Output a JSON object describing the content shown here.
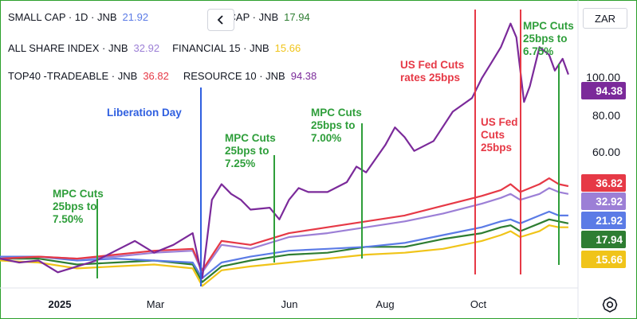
{
  "currency": "ZAR",
  "collapse_icon": "chevron-left-icon",
  "settings_icon": "settings-gear-icon",
  "legend": [
    [
      {
        "label": "SMALL CAP · 1D · JNB",
        "value": "21.92",
        "color": "#5b7be6"
      },
      {
        "label": "MID CAP · JNB",
        "value": "17.94",
        "color": "#2e7d32"
      }
    ],
    [
      {
        "label": "ALL SHARE INDEX · JNB",
        "value": "32.92",
        "color": "#9c7fd6"
      },
      {
        "label": "FINANCIAL 15 · JNB",
        "value": "15.66",
        "color": "#f0c419"
      }
    ],
    [
      {
        "label": "TOP40 -TRADEABLE · JNB",
        "value": "36.82",
        "color": "#e63946"
      },
      {
        "label": "RESOURCE 10 · JNB",
        "value": "94.38",
        "color": "#7b2a9a"
      }
    ]
  ],
  "chart_data": {
    "type": "line",
    "x_ticks": [
      "2025",
      "Mar",
      "Jun",
      "Aug",
      "Oct"
    ],
    "y_ticks": [
      "100.00",
      "80.00",
      "60.00"
    ],
    "ylim": [
      -15,
      130
    ],
    "xlim": [
      0,
      300
    ],
    "series": [
      {
        "name": "RESOURCE 10",
        "color": "#7b2a9a",
        "last": "94.38",
        "points": [
          [
            0,
            0
          ],
          [
            10,
            -2
          ],
          [
            20,
            -1
          ],
          [
            30,
            -7
          ],
          [
            40,
            -4
          ],
          [
            50,
            -1
          ],
          [
            60,
            4
          ],
          [
            70,
            9
          ],
          [
            80,
            3
          ],
          [
            90,
            7
          ],
          [
            100,
            13
          ],
          [
            105,
            -10
          ],
          [
            110,
            30
          ],
          [
            115,
            38
          ],
          [
            120,
            33
          ],
          [
            125,
            30
          ],
          [
            130,
            25
          ],
          [
            140,
            26
          ],
          [
            145,
            20
          ],
          [
            150,
            30
          ],
          [
            155,
            36
          ],
          [
            160,
            34
          ],
          [
            170,
            34
          ],
          [
            180,
            39
          ],
          [
            185,
            47
          ],
          [
            190,
            44
          ],
          [
            200,
            58
          ],
          [
            205,
            67
          ],
          [
            210,
            62
          ],
          [
            215,
            55
          ],
          [
            225,
            60
          ],
          [
            235,
            75
          ],
          [
            245,
            82
          ],
          [
            250,
            92
          ],
          [
            255,
            100
          ],
          [
            260,
            108
          ],
          [
            265,
            120
          ],
          [
            268,
            113
          ],
          [
            272,
            80
          ],
          [
            275,
            88
          ],
          [
            280,
            108
          ],
          [
            285,
            104
          ],
          [
            288,
            96
          ],
          [
            292,
            102
          ],
          [
            295,
            94
          ]
        ]
      },
      {
        "name": "TOP40 -TRADEABLE",
        "color": "#e63946",
        "last": "36.82",
        "points": [
          [
            0,
            0
          ],
          [
            20,
            1
          ],
          [
            40,
            0
          ],
          [
            60,
            2
          ],
          [
            80,
            4
          ],
          [
            100,
            5
          ],
          [
            105,
            -6
          ],
          [
            115,
            9
          ],
          [
            130,
            7
          ],
          [
            150,
            13
          ],
          [
            170,
            16
          ],
          [
            190,
            19
          ],
          [
            210,
            22
          ],
          [
            230,
            27
          ],
          [
            250,
            32
          ],
          [
            260,
            35
          ],
          [
            265,
            38
          ],
          [
            270,
            34
          ],
          [
            280,
            38
          ],
          [
            285,
            41
          ],
          [
            290,
            38
          ],
          [
            295,
            37
          ]
        ]
      },
      {
        "name": "ALL SHARE INDEX",
        "color": "#9c7fd6",
        "last": "32.92",
        "points": [
          [
            0,
            0
          ],
          [
            20,
            1
          ],
          [
            40,
            0
          ],
          [
            60,
            1
          ],
          [
            80,
            3
          ],
          [
            100,
            4
          ],
          [
            105,
            -7
          ],
          [
            115,
            7
          ],
          [
            130,
            5
          ],
          [
            150,
            11
          ],
          [
            170,
            13
          ],
          [
            190,
            16
          ],
          [
            210,
            19
          ],
          [
            230,
            23
          ],
          [
            250,
            28
          ],
          [
            260,
            31
          ],
          [
            265,
            33
          ],
          [
            270,
            30
          ],
          [
            280,
            33
          ],
          [
            285,
            36
          ],
          [
            290,
            34
          ],
          [
            295,
            33
          ]
        ]
      },
      {
        "name": "SMALL CAP",
        "color": "#5b7be6",
        "last": "21.92",
        "points": [
          [
            0,
            1
          ],
          [
            20,
            1
          ],
          [
            40,
            -1
          ],
          [
            60,
            0
          ],
          [
            80,
            -1
          ],
          [
            100,
            -2
          ],
          [
            105,
            -10
          ],
          [
            115,
            -2
          ],
          [
            130,
            1
          ],
          [
            150,
            4
          ],
          [
            170,
            5
          ],
          [
            190,
            6
          ],
          [
            210,
            8
          ],
          [
            230,
            12
          ],
          [
            250,
            16
          ],
          [
            260,
            19
          ],
          [
            265,
            20
          ],
          [
            270,
            18
          ],
          [
            280,
            22
          ],
          [
            285,
            24
          ],
          [
            290,
            22
          ],
          [
            295,
            22
          ]
        ]
      },
      {
        "name": "MID CAP",
        "color": "#2e7d32",
        "last": "17.94",
        "points": [
          [
            0,
            0
          ],
          [
            20,
            0
          ],
          [
            40,
            -3
          ],
          [
            60,
            -2
          ],
          [
            80,
            -1
          ],
          [
            100,
            -3
          ],
          [
            105,
            -12
          ],
          [
            115,
            -4
          ],
          [
            130,
            -1
          ],
          [
            150,
            2
          ],
          [
            170,
            3
          ],
          [
            190,
            6
          ],
          [
            210,
            6
          ],
          [
            230,
            10
          ],
          [
            250,
            13
          ],
          [
            260,
            16
          ],
          [
            265,
            17
          ],
          [
            270,
            14
          ],
          [
            280,
            18
          ],
          [
            285,
            20
          ],
          [
            290,
            19
          ],
          [
            295,
            18
          ]
        ]
      },
      {
        "name": "FINANCIAL 15",
        "color": "#f0c419",
        "last": "15.66",
        "points": [
          [
            0,
            -1
          ],
          [
            20,
            -2
          ],
          [
            40,
            -5
          ],
          [
            60,
            -4
          ],
          [
            80,
            -3
          ],
          [
            100,
            -5
          ],
          [
            105,
            -14
          ],
          [
            115,
            -6
          ],
          [
            130,
            -4
          ],
          [
            150,
            -2
          ],
          [
            170,
            0
          ],
          [
            190,
            2
          ],
          [
            210,
            3
          ],
          [
            230,
            5
          ],
          [
            250,
            9
          ],
          [
            260,
            12
          ],
          [
            265,
            14
          ],
          [
            270,
            11
          ],
          [
            280,
            14
          ],
          [
            285,
            17
          ],
          [
            290,
            16
          ],
          [
            295,
            16
          ]
        ]
      }
    ],
    "annotations": [
      {
        "text": [
          "MPC Cuts",
          "25bps to",
          "7.50%"
        ],
        "color": "#2e9e3a",
        "x": 34
      },
      {
        "text": [
          "Liberation Day"
        ],
        "color": "#2f5fe0",
        "x": 104
      },
      {
        "text": [
          "MPC Cuts",
          "25bps to",
          "7.25%"
        ],
        "color": "#2e9e3a",
        "x": 140
      },
      {
        "text": [
          "MPC Cuts",
          "25bps to",
          "7.00%"
        ],
        "color": "#2e9e3a",
        "x": 186
      },
      {
        "text": [
          "US Fed Cuts",
          "rates 25bps"
        ],
        "color": "#e63946",
        "x": 247
      },
      {
        "text": [
          "US Fed",
          "Cuts",
          "25bps"
        ],
        "color": "#e63946",
        "x": 270
      },
      {
        "text": [
          "MPC Cuts",
          "25bps to",
          "6.75%"
        ],
        "color": "#2e9e3a",
        "x": 291
      }
    ]
  }
}
